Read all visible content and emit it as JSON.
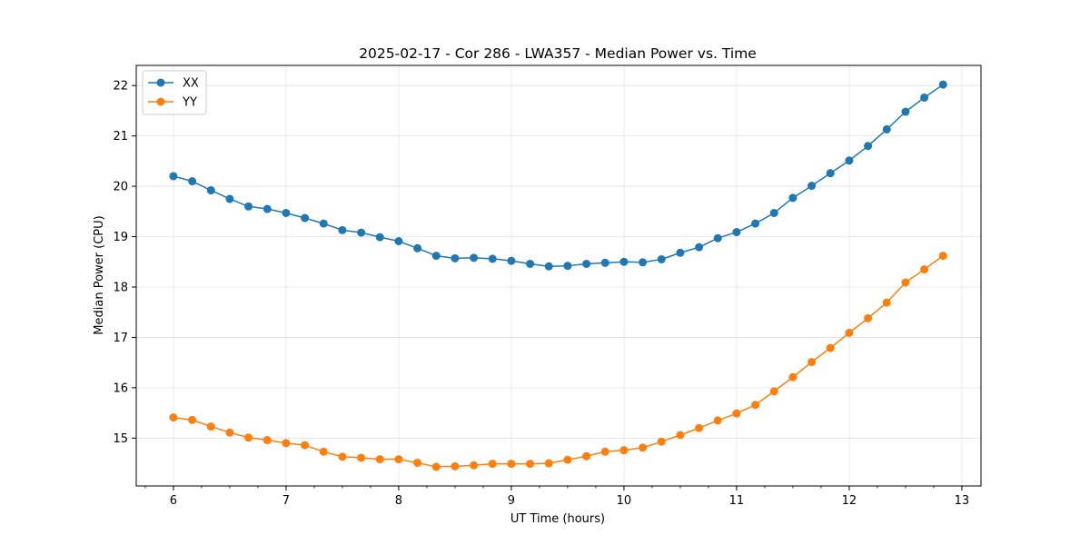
{
  "chart_data": {
    "type": "line",
    "title": "2025-02-17 - Cor 286 - LWA357 - Median Power vs. Time",
    "xlabel": "UT Time (hours)",
    "ylabel": "Median Power (CPU)",
    "xlim": [
      5.67,
      13.17
    ],
    "ylim": [
      14.05,
      22.4
    ],
    "xticks": [
      6,
      7,
      8,
      9,
      10,
      11,
      12,
      13
    ],
    "yticks": [
      15,
      16,
      17,
      18,
      19,
      20,
      21,
      22
    ],
    "grid": true,
    "legend_position": "upper-left",
    "x": [
      6.0,
      6.1667,
      6.3333,
      6.5,
      6.6667,
      6.8333,
      7.0,
      7.1667,
      7.3333,
      7.5,
      7.6667,
      7.8333,
      8.0,
      8.1667,
      8.3333,
      8.5,
      8.6667,
      8.8333,
      9.0,
      9.1667,
      9.3333,
      9.5,
      9.6667,
      9.8333,
      10.0,
      10.1667,
      10.3333,
      10.5,
      10.6667,
      10.8333,
      11.0,
      11.1667,
      11.3333,
      11.5,
      11.6667,
      11.8333,
      12.0,
      12.1667,
      12.3333,
      12.5,
      12.6667,
      12.8333
    ],
    "series": [
      {
        "name": "XX",
        "color": "#1f77b4",
        "values": [
          20.2,
          20.1,
          19.92,
          19.75,
          19.6,
          19.55,
          19.47,
          19.37,
          19.26,
          19.13,
          19.08,
          18.99,
          18.91,
          18.77,
          18.62,
          18.57,
          18.58,
          18.56,
          18.52,
          18.46,
          18.41,
          18.42,
          18.46,
          18.48,
          18.5,
          18.49,
          18.55,
          18.68,
          18.79,
          18.97,
          19.09,
          19.26,
          19.47,
          19.77,
          20.01,
          20.26,
          20.51,
          20.8,
          21.13,
          21.48,
          21.76,
          22.02
        ]
      },
      {
        "name": "YY",
        "color": "#ff7f0e",
        "values": [
          15.41,
          15.36,
          15.23,
          15.11,
          15.01,
          14.96,
          14.9,
          14.86,
          14.73,
          14.63,
          14.61,
          14.58,
          14.58,
          14.51,
          14.43,
          14.44,
          14.46,
          14.49,
          14.49,
          14.49,
          14.5,
          14.57,
          14.64,
          14.73,
          14.76,
          14.81,
          14.93,
          15.06,
          15.2,
          15.35,
          15.49,
          15.66,
          15.93,
          16.21,
          16.51,
          16.79,
          17.09,
          17.38,
          17.69,
          18.09,
          18.35,
          18.62
        ]
      }
    ]
  }
}
